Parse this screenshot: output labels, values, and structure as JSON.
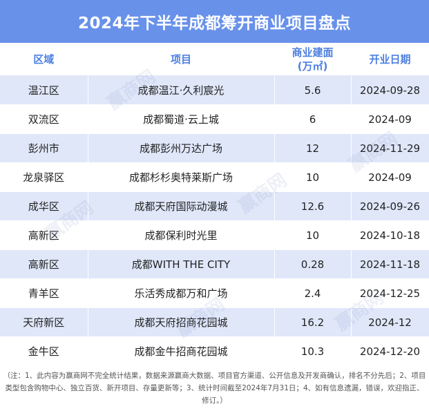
{
  "title": "2024年下半年成都筹开商业项目盘点",
  "headers": {
    "district": "区域",
    "project": "项目",
    "area": "商业建面\n(万㎡)",
    "opening": "开业日期"
  },
  "rows": [
    {
      "district": "温江区",
      "project": "成都温江·久利宸光",
      "area": "5.6",
      "opening": "2024-09-28"
    },
    {
      "district": "双流区",
      "project": "成都蜀道·云上城",
      "area": "6",
      "opening": "2024-09"
    },
    {
      "district": "彭州市",
      "project": "成都彭州万达广场",
      "area": "12",
      "opening": "2024-11-29"
    },
    {
      "district": "龙泉驿区",
      "project": "成都杉杉奥特莱斯广场",
      "area": "10",
      "opening": "2024-09"
    },
    {
      "district": "成华区",
      "project": "成都天府国际动漫城",
      "area": "12.6",
      "opening": "2024-09-26"
    },
    {
      "district": "高新区",
      "project": "成都保利时光里",
      "area": "10",
      "opening": "2024-10-18"
    },
    {
      "district": "高新区",
      "project": "成都WITH THE CITY",
      "area": "0.28",
      "opening": "2024-11-18"
    },
    {
      "district": "青羊区",
      "project": "乐活秀成都万和广场",
      "area": "2.4",
      "opening": "2024-12-25"
    },
    {
      "district": "天府新区",
      "project": "成都天府招商花园城",
      "area": "16.2",
      "opening": "2024-12"
    },
    {
      "district": "金牛区",
      "project": "成都金牛招商花园城",
      "area": "10.3",
      "opening": "2024-12-20"
    }
  ],
  "note": "（注：1、此内容为赢商网不完全统计结果，数据来源赢商大数据、项目官方渠道、公开信息及开发商确认，排名不分先后；2、项目类型包含购物中心、独立百货、新开项目、存量更新等；3、统计时间截至2024年7月31日；4、如有信息遗漏，错误，欢迎指正、修订。）",
  "watermark": "赢商网"
}
